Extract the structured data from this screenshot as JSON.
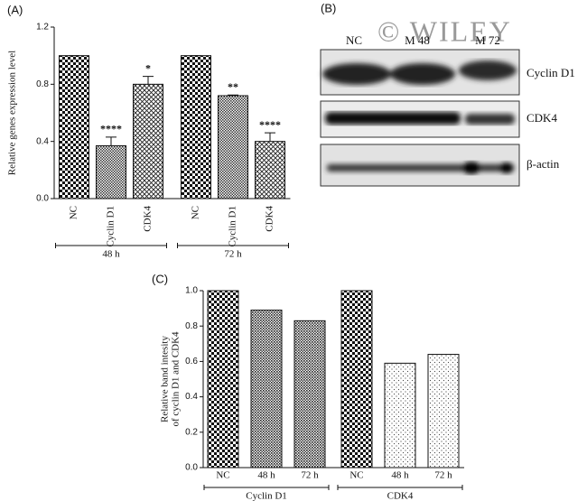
{
  "panel_labels": [
    "(A)",
    "(B)",
    "(C)"
  ],
  "watermark": "© WILEY",
  "blot": {
    "lanes": [
      "NC",
      "M 48",
      "M 72"
    ],
    "bands": [
      "Cyclin D1",
      "CDK4",
      "β-actin"
    ]
  },
  "chart_data": [
    {
      "type": "bar",
      "ylabel": "Relative genes expression level",
      "categories": [
        "NC",
        "Cyclin D1",
        "CDK4",
        "NC",
        "Cyclin D1",
        "CDK4"
      ],
      "values": [
        1.0,
        0.37,
        0.8,
        1.0,
        0.72,
        0.4
      ],
      "errors": [
        0,
        0.06,
        0.055,
        0,
        0.005,
        0.06
      ],
      "annotations": [
        null,
        "****",
        "*",
        null,
        "**",
        "****"
      ],
      "patterns": [
        "checker",
        "hatch",
        "cross",
        "checker",
        "hatch",
        "cross"
      ],
      "groups": [
        {
          "label": "48 h",
          "start": 0,
          "end": 2
        },
        {
          "label": "72 h",
          "start": 3,
          "end": 5
        }
      ],
      "ylim": [
        0,
        1.2
      ],
      "yticks": [
        {
          "value": 0,
          "label": "0.0"
        },
        0.4,
        0.8,
        1.2
      ]
    },
    {
      "type": "bar",
      "ylabel": [
        "Relative band intesity",
        "of cyclin D1 and CDK4"
      ],
      "categories": [
        "NC",
        "48 h",
        "72 h",
        "NC",
        "48 h",
        "72 h"
      ],
      "values": [
        1.0,
        0.89,
        0.83,
        1.0,
        0.59,
        0.64
      ],
      "patterns": [
        "checker",
        "dense",
        "dense",
        "checker",
        "dots",
        "dots"
      ],
      "groups": [
        {
          "label": "Cyclin D1",
          "start": 0,
          "end": 2
        },
        {
          "label": "CDK4",
          "start": 3,
          "end": 5
        }
      ],
      "ylim": [
        0,
        1.0
      ],
      "yticks": [
        {
          "value": 0,
          "label": "0.0"
        },
        0.2,
        0.4,
        0.6,
        0.8,
        {
          "value": 1.0,
          "label": "1.0"
        }
      ]
    }
  ]
}
